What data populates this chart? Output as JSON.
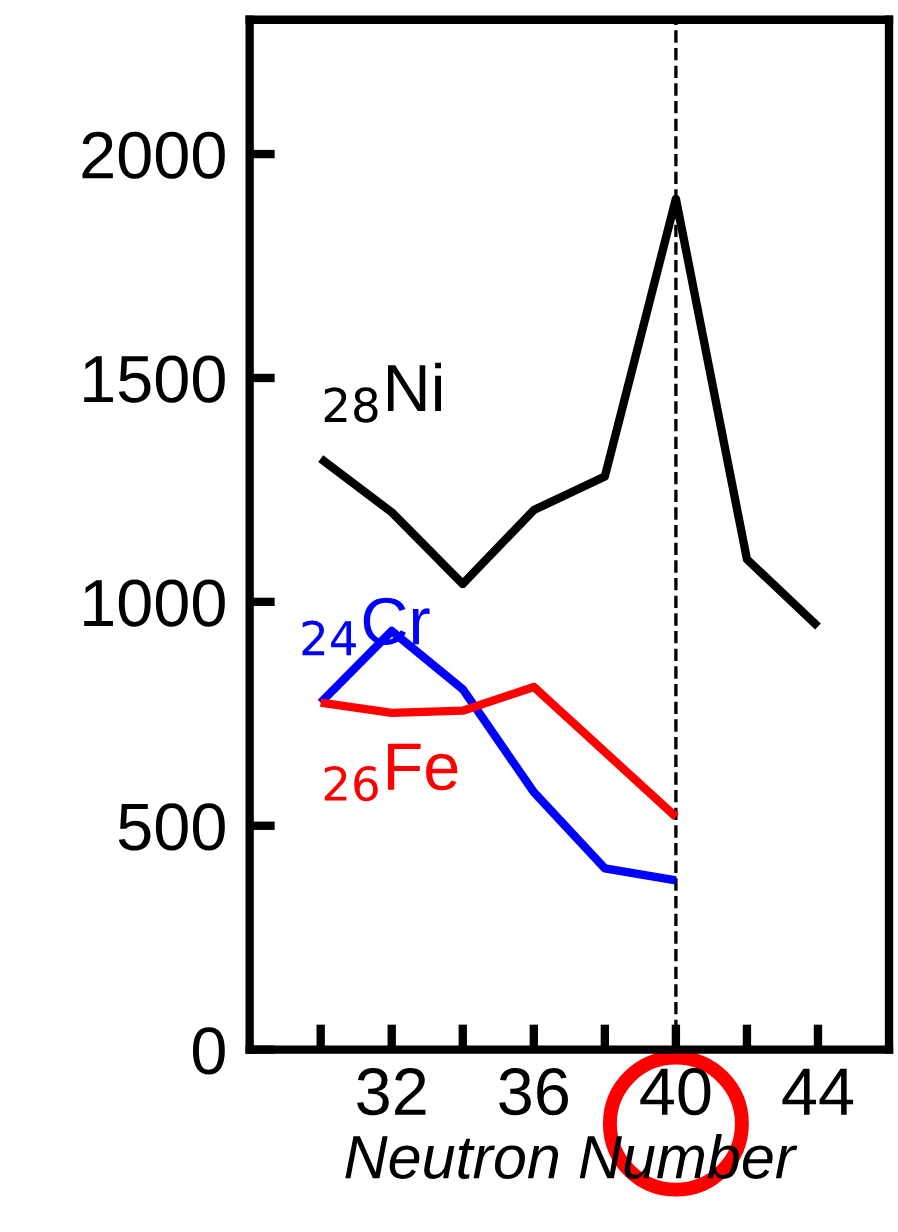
{
  "chart_data": {
    "type": "line",
    "xlabel": "Neutron Number",
    "x": [
      30,
      32,
      34,
      36,
      38,
      40,
      42,
      44
    ],
    "series": [
      {
        "name": "$_{28}$Ni",
        "color": "#000000",
        "values": [
          1320,
          1200,
          1040,
          1205,
          1280,
          1900,
          1095,
          945
        ]
      },
      {
        "name": "$_{24}$Cr",
        "color": "#0000ff",
        "values": [
          775,
          935,
          805,
          575,
          405,
          378,
          null,
          null
        ]
      },
      {
        "name": "$_{26}$Fe",
        "color": "#ff0000",
        "values": [
          775,
          752,
          757,
          810,
          null,
          520,
          null,
          null
        ]
      }
    ],
    "xlim": [
      28,
      46
    ],
    "ylim": [
      0,
      2300
    ],
    "xticks": [
      {
        "value": 30,
        "label": null
      },
      32,
      {
        "value": 34,
        "label": null
      },
      36,
      {
        "value": 38,
        "label": null
      },
      40,
      {
        "value": 42,
        "label": null
      },
      44
    ],
    "yticks": [
      0,
      500,
      1000,
      1500,
      2000
    ],
    "ref_lines": [
      {
        "axis": "x",
        "value": 40,
        "color": "#000000",
        "line_style": "dashed"
      }
    ],
    "grid": false,
    "marker": "none",
    "line_style": "solid"
  }
}
